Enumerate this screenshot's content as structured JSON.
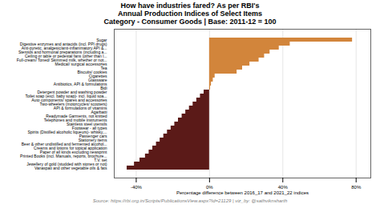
{
  "chart_data": {
    "type": "bar",
    "orientation": "horizontal",
    "title": "How have industries fared? As per RBI's\nAnnual Production Indices of Select Items\nCategory - Consumer Goods | Base: 2011-12 = 100",
    "xlabel": "Percentage difference between 2016_17 and 2021_22 indices",
    "source": "Source: https://rbi.org.in/Scripts/PublicationsView.aspx?Id=21129 | viz_by: @sathviknsharth",
    "categories": [
      "Sugar",
      "Digestive enzymes and antacids (incl. PPI drugs)",
      "Anti-pyretic, analgesic/anti-inflammatory API &...",
      "Steroids and hormonal preparations (including a...",
      "Ceiling or table or pedestal fans (other than l...",
      "Full-cream/ Toned/ Skimmed milk, whether or not...",
      "Medical/ surgical accessories",
      "Tea",
      "Biscuits/ cookies",
      "Cigarettes",
      "Glassware",
      "Antibiotics, API & formulations",
      "Bidi",
      "Detergent powder and washing powder",
      "Toilet soap (excl. baby soap)- incl. liquid soa...",
      "Auto components/ spares and accessories",
      "Two-wheelers (motorcycles/ scooters)",
      "API & formulations of vitamins",
      "Agarbatti",
      "Readymade Garments, not knitted",
      "Telephones and mobile instruments",
      "Stainless steel utensils",
      "Footwear - all types",
      "Spirits (Distilled alcoholic liqueurs)- whisky,...",
      "Passenger cars",
      "Stationery items",
      "Beer & other undistilled and fermented alcohol...",
      "Creams and lotions for topical application",
      "Paper of all kinds excluding newsprint",
      "Printed Books (incl. Manuals, reports, brochure...",
      "T.V. set",
      "Jewellery of gold (studded with stones or not)",
      "Vanaspati and other vegetable oils & fats"
    ],
    "values": [
      78,
      44,
      38,
      33,
      30,
      27,
      22,
      18,
      15,
      3,
      2,
      1,
      0.5,
      -3,
      -5,
      -7,
      -9,
      -11,
      -13,
      -15,
      -17,
      -19,
      -21,
      -23,
      -25,
      -27,
      -29,
      -31,
      -33,
      -35,
      -38,
      -41,
      -45
    ],
    "colors": [
      "#D2853B",
      "#D2853B",
      "#D2853B",
      "#D2853B",
      "#D2853B",
      "#D2853B",
      "#D2853B",
      "#D2853B",
      "#D2853B",
      "#D2853B",
      "#D2853B",
      "#D2853B",
      "#D2853B",
      "#5B1A18",
      "#5B1A18",
      "#5B1A18",
      "#5B1A18",
      "#5B1A18",
      "#5B1A18",
      "#5B1A18",
      "#5B1A18",
      "#5B1A18",
      "#5B1A18",
      "#5B1A18",
      "#5B1A18",
      "#5B1A18",
      "#5B1A18",
      "#5B1A18",
      "#5B1A18",
      "#5B1A18",
      "#5B1A18",
      "#5B1A18",
      "#5B1A18"
    ],
    "xlim": [
      -52,
      88
    ],
    "xticks": [
      {
        "value": -40,
        "label": "-40%"
      },
      {
        "value": 0,
        "label": "0%"
      },
      {
        "value": 40,
        "label": "40%"
      },
      {
        "value": 80,
        "label": "80%"
      }
    ],
    "grid": true
  }
}
